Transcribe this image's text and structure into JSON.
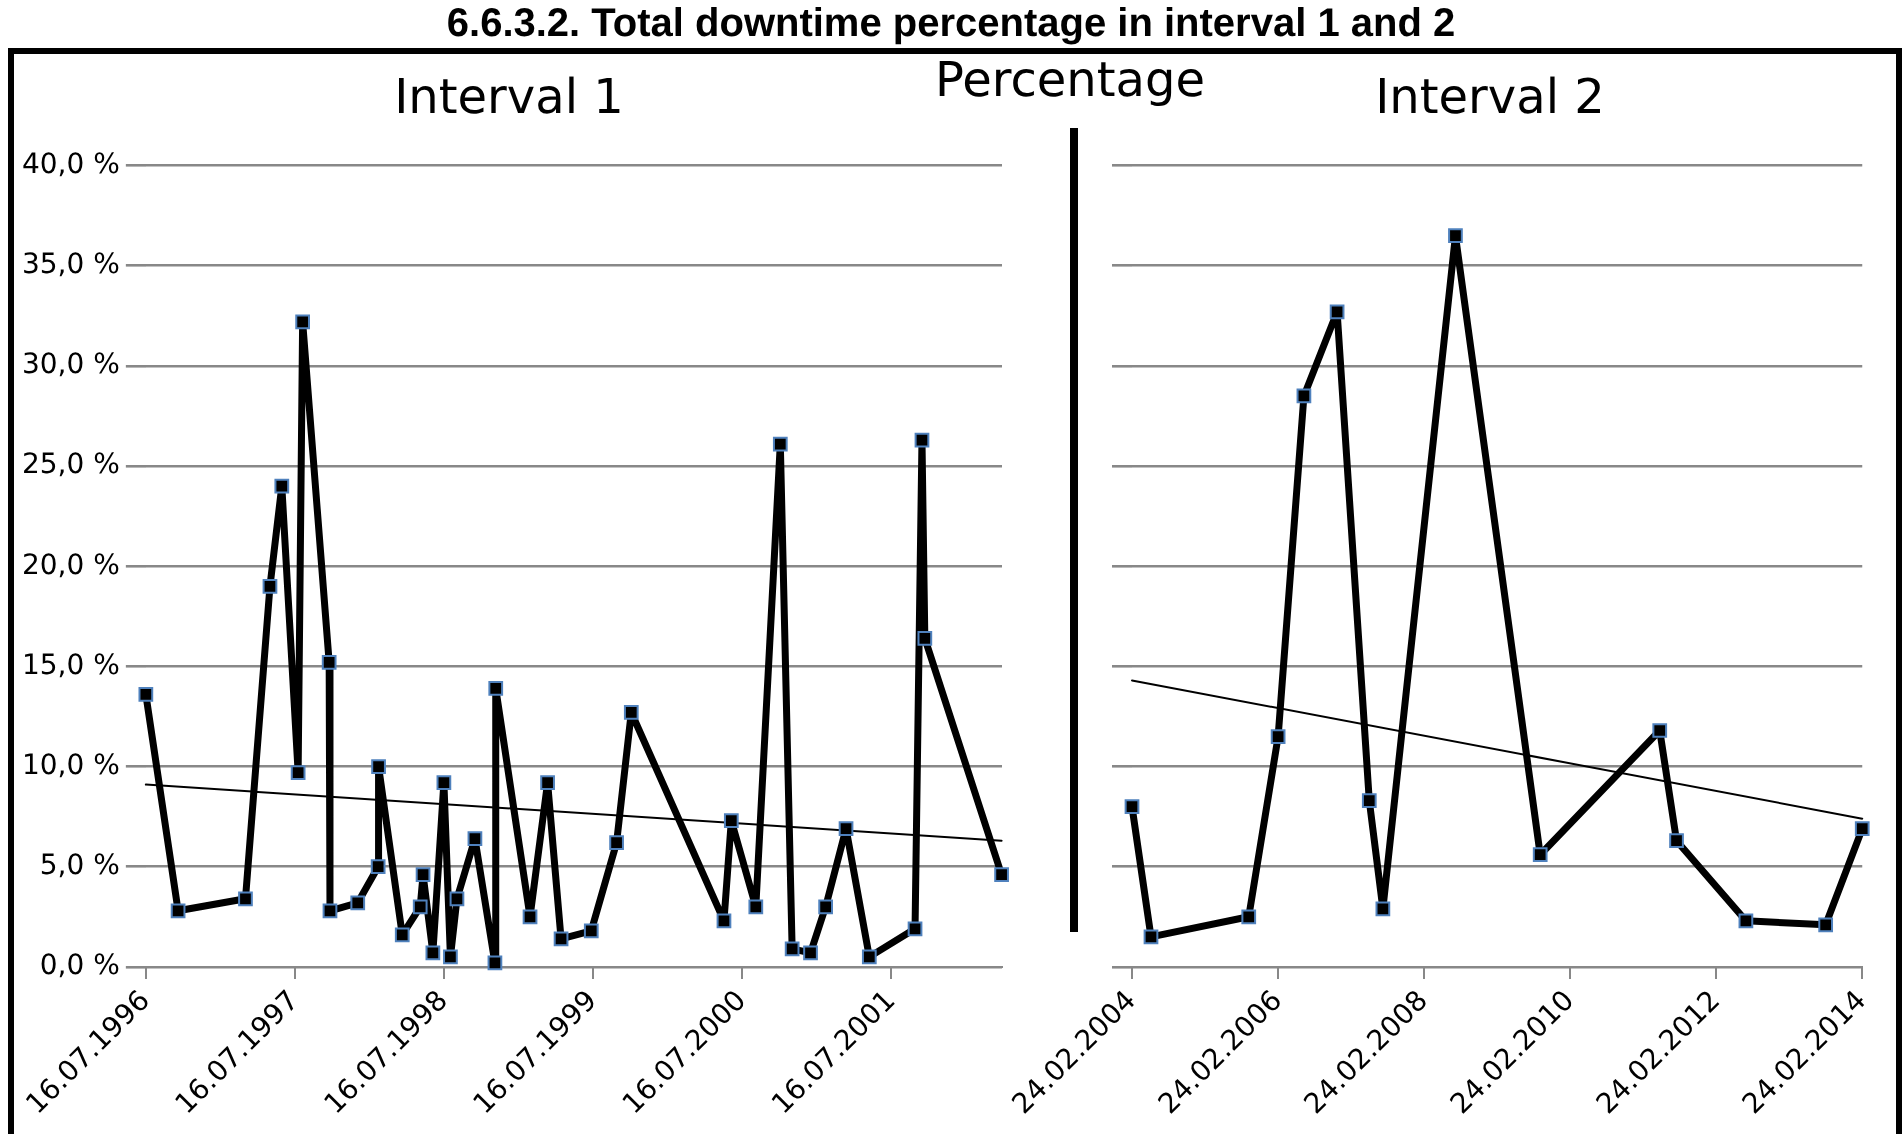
{
  "chart_data": [
    {
      "type": "other",
      "title": "6.6.3.2. Total downtime percentage in interval 1 and 2",
      "annotations": [
        "Percentage"
      ]
    },
    {
      "type": "line",
      "title": "Interval 1",
      "grid": "y",
      "legend": false,
      "marker": "square",
      "xlim": [
        "1996-07-16",
        "2002-04-13"
      ],
      "xticks": [
        {
          "value": "1996-07-16",
          "label": "16.07.1996"
        },
        {
          "value": "1997-07-16",
          "label": "16.07.1997"
        },
        {
          "value": "1998-07-16",
          "label": "16.07.1998"
        },
        {
          "value": "1999-07-16",
          "label": "16.07.1999"
        },
        {
          "value": "2000-07-16",
          "label": "16.07.2000"
        },
        {
          "value": "2001-07-16",
          "label": "16.07.2001"
        }
      ],
      "ylim": [
        0,
        40
      ],
      "yticks": [
        {
          "value": 0,
          "label": "0,0 %"
        },
        {
          "value": 5,
          "label": "5,0 %"
        },
        {
          "value": 10,
          "label": "10,0 %"
        },
        {
          "value": 15,
          "label": "15,0 %"
        },
        {
          "value": 20,
          "label": "20,0 %"
        },
        {
          "value": 25,
          "label": "25,0 %"
        },
        {
          "value": 30,
          "label": "30,0 %"
        },
        {
          "value": 35,
          "label": "35,0 %"
        },
        {
          "value": 40,
          "label": "40,0 %"
        }
      ],
      "series": [
        {
          "color": "#000000",
          "x": [
            "1996-07-16",
            "1996-10-03",
            "1997-03-17",
            "1997-05-16",
            "1997-06-14",
            "1997-07-24",
            "1997-08-04",
            "1997-10-08",
            "1997-10-10",
            "1997-12-17",
            "1998-02-05",
            "1998-02-06",
            "1998-04-05",
            "1998-05-19",
            "1998-05-26",
            "1998-06-19",
            "1998-07-16",
            "1998-08-01",
            "1998-08-17",
            "1998-09-30",
            "1998-11-18",
            "1998-11-20",
            "1999-02-12",
            "1999-03-27",
            "1999-04-29",
            "1999-07-12",
            "1999-09-12",
            "1999-10-18",
            "2000-06-01",
            "2000-06-19",
            "2000-08-18",
            "2000-10-17",
            "2000-11-15",
            "2000-12-30",
            "2001-02-05",
            "2001-03-27",
            "2001-05-23",
            "2001-09-12",
            "2001-09-29",
            "2001-10-06",
            "2002-04-12"
          ],
          "values": [
            13.6,
            2.8,
            3.4,
            19.0,
            24.0,
            9.7,
            32.2,
            15.2,
            2.8,
            3.2,
            5.0,
            10.0,
            1.6,
            3.0,
            4.6,
            0.7,
            9.2,
            0.5,
            3.4,
            6.4,
            0.2,
            13.9,
            2.5,
            9.2,
            1.4,
            1.8,
            6.2,
            12.7,
            2.3,
            7.3,
            3.0,
            26.1,
            0.9,
            0.7,
            3.0,
            6.9,
            0.5,
            1.9,
            26.3,
            16.4,
            4.6
          ]
        },
        {
          "color": "#000000",
          "marker": "none",
          "x": [
            "1996-07-16",
            "2002-04-12"
          ],
          "values": [
            9.1,
            6.3
          ]
        }
      ]
    },
    {
      "type": "line",
      "title": "Interval 2",
      "grid": "y",
      "legend": false,
      "marker": "square",
      "tick_labels": "x",
      "xlim": [
        "2004-02-24",
        "2014-02-24"
      ],
      "xticks": [
        {
          "value": "2004-02-24",
          "label": "24.02.2004"
        },
        {
          "value": "2006-02-24",
          "label": "24.02.2006"
        },
        {
          "value": "2008-02-24",
          "label": "24.02.2008"
        },
        {
          "value": "2010-02-24",
          "label": "24.02.2010"
        },
        {
          "value": "2012-02-24",
          "label": "24.02.2012"
        },
        {
          "value": "2014-02-24",
          "label": "24.02.2014"
        }
      ],
      "ylim": [
        0,
        40
      ],
      "yticks": [
        0,
        5,
        10,
        15,
        20,
        25,
        30,
        35,
        40
      ],
      "series": [
        {
          "color": "#000000",
          "x": [
            "2004-02-24",
            "2004-05-29",
            "2005-09-30",
            "2006-02-24",
            "2006-07-03",
            "2006-12-16",
            "2007-05-26",
            "2007-08-02",
            "2008-07-30",
            "2009-09-27",
            "2011-05-18",
            "2011-08-10",
            "2012-07-22",
            "2013-08-25",
            "2014-02-24"
          ],
          "values": [
            8.0,
            1.5,
            2.5,
            11.5,
            28.5,
            32.7,
            8.3,
            2.9,
            36.5,
            5.6,
            11.8,
            6.3,
            2.3,
            2.1,
            6.9
          ]
        },
        {
          "color": "#000000",
          "marker": "none",
          "x": [
            "2004-02-24",
            "2014-02-24"
          ],
          "values": [
            14.3,
            7.4
          ]
        }
      ]
    }
  ]
}
